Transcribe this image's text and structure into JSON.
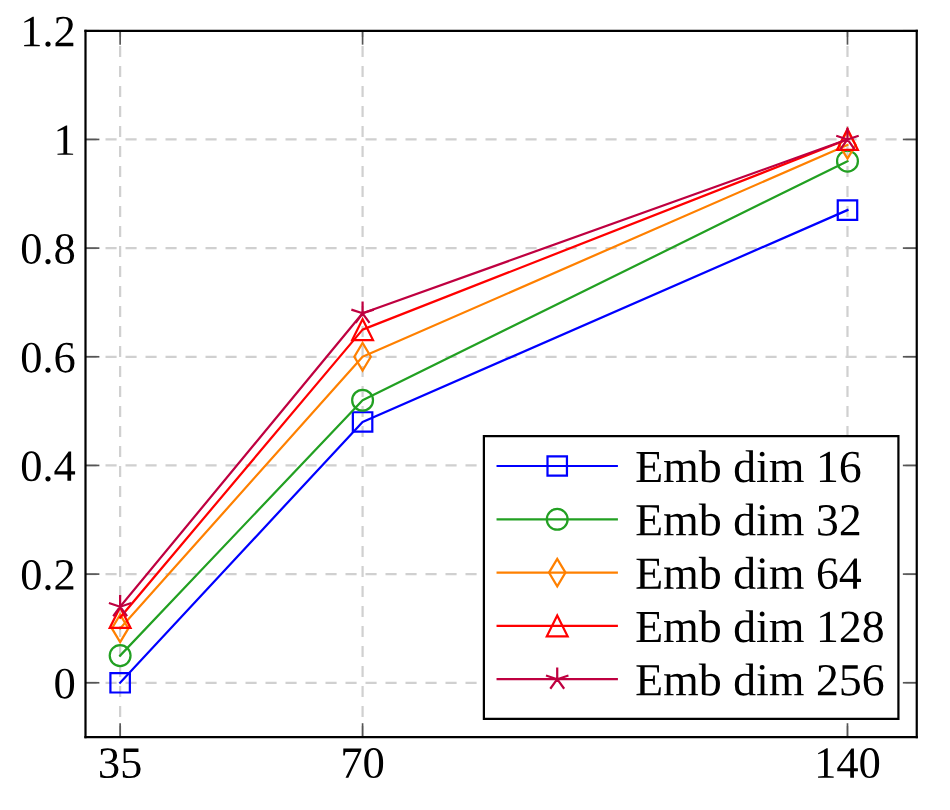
{
  "chart_data": {
    "type": "line",
    "x": [
      35,
      70,
      140
    ],
    "xlim": [
      30,
      150
    ],
    "xticks": [
      35,
      70,
      140
    ],
    "ylim": [
      -0.1,
      1.2
    ],
    "yticks": [
      0,
      0.2,
      0.4,
      0.6,
      0.8,
      1,
      1.2
    ],
    "grid": true,
    "legend": "bottom right",
    "line_style": "solid",
    "series": [
      {
        "name": "Emb dim 16",
        "color": "#0000ff",
        "marker": "square",
        "values": [
          0,
          0.48,
          0.87
        ]
      },
      {
        "name": "Emb dim 32",
        "color": "#22a022",
        "marker": "circle",
        "values": [
          0.05,
          0.52,
          0.96
        ]
      },
      {
        "name": "Emb dim 64",
        "color": "#ff8000",
        "marker": "diamond",
        "values": [
          0.1,
          0.6,
          0.99
        ]
      },
      {
        "name": "Emb dim 128",
        "color": "#ff0000",
        "marker": "triangle",
        "values": [
          0.12,
          0.65,
          1.0
        ]
      },
      {
        "name": "Emb dim 256",
        "color": "#bf0040",
        "marker": "star",
        "values": [
          0.14,
          0.68,
          1.0
        ]
      }
    ]
  }
}
